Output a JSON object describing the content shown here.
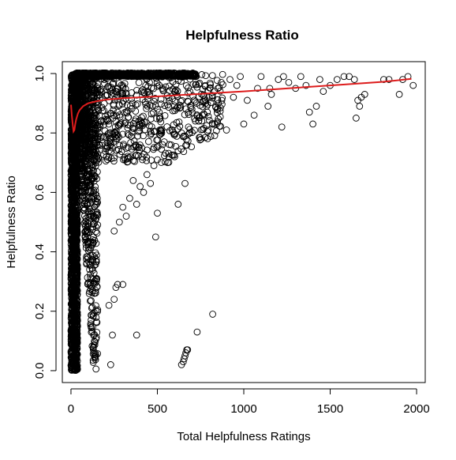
{
  "chart_data": {
    "type": "scatter",
    "title": "Helpfulness Ratio",
    "xlabel": "Total Helpfulness Ratings",
    "ylabel": "Helpfulness Ratio",
    "xlim": [
      -50,
      2050
    ],
    "ylim": [
      -0.04,
      1.04
    ],
    "x_ticks": [
      0,
      500,
      1000,
      1500,
      2000
    ],
    "y_ticks": [
      0.0,
      0.2,
      0.4,
      0.6,
      0.8,
      1.0
    ],
    "x_tick_labels": [
      "0",
      "500",
      "1000",
      "1500",
      "2000"
    ],
    "y_tick_labels": [
      "0.0",
      "0.2",
      "0.4",
      "0.6",
      "0.8",
      "1.0"
    ],
    "grid": false,
    "legend": "none",
    "point_style": "open-circle",
    "point_color": "#000000",
    "trend_color": "#dd1c1c",
    "trend_line": {
      "x": [
        0,
        5,
        10,
        15,
        20,
        25,
        30,
        40,
        50,
        70,
        100,
        150,
        200,
        300,
        400,
        500,
        700,
        1000,
        1300,
        1600,
        1800,
        1970
      ],
      "y": [
        0.895,
        0.86,
        0.83,
        0.805,
        0.81,
        0.83,
        0.845,
        0.865,
        0.877,
        0.89,
        0.9,
        0.907,
        0.912,
        0.917,
        0.92,
        0.923,
        0.93,
        0.94,
        0.952,
        0.964,
        0.972,
        0.982
      ]
    },
    "series": [
      {
        "points": [
          [
            1610,
            0.99
          ],
          [
            1640,
            0.98
          ],
          [
            1660,
            0.91
          ],
          [
            1680,
            0.92
          ],
          [
            1700,
            0.93
          ],
          [
            1810,
            0.98
          ],
          [
            1840,
            0.98
          ],
          [
            1900,
            0.93
          ],
          [
            1920,
            0.98
          ],
          [
            1950,
            0.99
          ],
          [
            1980,
            0.96
          ],
          [
            1650,
            0.85
          ],
          [
            1670,
            0.89
          ],
          [
            1400,
            0.83
          ],
          [
            1380,
            0.87
          ],
          [
            1420,
            0.89
          ],
          [
            1460,
            0.94
          ],
          [
            1500,
            0.96
          ],
          [
            1540,
            0.98
          ],
          [
            1580,
            0.99
          ],
          [
            1440,
            0.98
          ],
          [
            1360,
            0.96
          ],
          [
            1330,
            0.99
          ],
          [
            1300,
            0.95
          ],
          [
            1260,
            0.97
          ],
          [
            1220,
            0.82
          ],
          [
            1230,
            0.99
          ],
          [
            1200,
            0.98
          ],
          [
            1150,
            0.95
          ],
          [
            1160,
            0.93
          ],
          [
            1140,
            0.89
          ],
          [
            1100,
            0.99
          ],
          [
            1080,
            0.95
          ],
          [
            1060,
            0.86
          ],
          [
            1020,
            0.91
          ],
          [
            1000,
            0.83
          ],
          [
            980,
            0.99
          ],
          [
            960,
            0.96
          ],
          [
            940,
            0.92
          ],
          [
            900,
            0.81
          ],
          [
            920,
            0.98
          ],
          [
            870,
            0.97
          ],
          [
            850,
            0.95
          ],
          [
            830,
            0.94
          ],
          [
            800,
            0.92
          ],
          [
            780,
            0.9
          ],
          [
            760,
            0.86
          ],
          [
            740,
            0.84
          ],
          [
            720,
            0.84
          ],
          [
            700,
            0.88
          ],
          [
            680,
            0.82
          ],
          [
            660,
            0.79
          ],
          [
            640,
            0.8
          ],
          [
            620,
            0.74
          ],
          [
            600,
            0.72
          ],
          [
            580,
            0.76
          ],
          [
            560,
            0.7
          ],
          [
            540,
            0.77
          ],
          [
            520,
            0.8
          ],
          [
            500,
            0.71
          ],
          [
            480,
            0.69
          ],
          [
            460,
            0.63
          ],
          [
            440,
            0.66
          ],
          [
            420,
            0.6
          ],
          [
            400,
            0.62
          ],
          [
            380,
            0.56
          ],
          [
            360,
            0.64
          ],
          [
            340,
            0.58
          ],
          [
            320,
            0.52
          ],
          [
            300,
            0.55
          ],
          [
            280,
            0.5
          ],
          [
            250,
            0.47
          ],
          [
            300,
            0.29
          ],
          [
            260,
            0.28
          ],
          [
            270,
            0.29
          ],
          [
            220,
            0.22
          ],
          [
            250,
            0.24
          ],
          [
            240,
            0.12
          ],
          [
            230,
            0.02
          ],
          [
            380,
            0.12
          ],
          [
            620,
            0.56
          ],
          [
            660,
            0.63
          ],
          [
            500,
            0.53
          ],
          [
            490,
            0.45
          ],
          [
            730,
            0.13
          ],
          [
            820,
            0.19
          ],
          [
            640,
            0.02
          ],
          [
            650,
            0.03
          ],
          [
            655,
            0.04
          ],
          [
            660,
            0.05
          ],
          [
            665,
            0.06
          ],
          [
            670,
            0.07
          ],
          [
            675,
            0.07
          ]
        ]
      }
    ]
  }
}
